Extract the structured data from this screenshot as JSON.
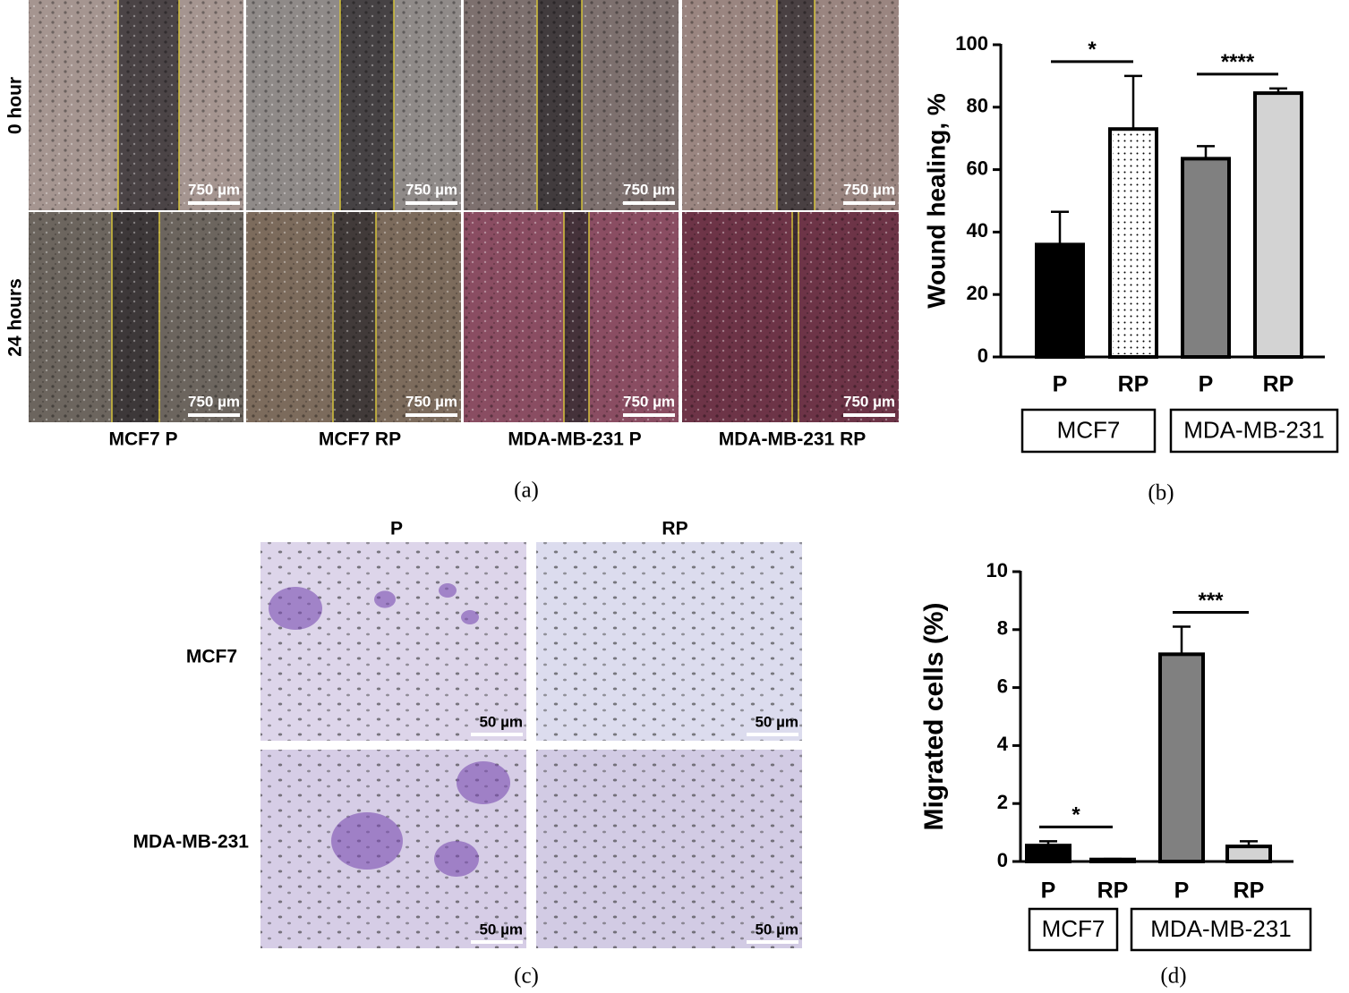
{
  "panel_a": {
    "caption": "(a)",
    "row_labels": [
      "0 hour",
      "24 hours"
    ],
    "column_labels": [
      "MCF7 P",
      "MCF7 RP",
      "MDA-MB-231  P",
      "MDA-MB-231 RP"
    ],
    "scale_bar": "750 µm"
  },
  "panel_c": {
    "caption": "(c)",
    "row_labels": [
      "MCF7",
      "MDA-MB-231"
    ],
    "column_labels": [
      "P",
      "RP"
    ],
    "scale_bar": "50 µm"
  },
  "chart_data": [
    {
      "type": "bar",
      "caption": "(b)",
      "ylabel": "Wound healing, %",
      "categories": [
        "P",
        "RP",
        "P",
        "RP"
      ],
      "groups": [
        "MCF7",
        "MDA-MB-231"
      ],
      "values": [
        36,
        73,
        63.5,
        84.5
      ],
      "errors": [
        10.5,
        17,
        4,
        1.5
      ],
      "colors": [
        "#000000",
        "#ffffff",
        "#808080",
        "#d3d3d3"
      ],
      "ylim": [
        0,
        100
      ],
      "yticks": [
        0,
        20,
        40,
        60,
        80,
        100
      ],
      "significance": [
        "*",
        "****"
      ]
    },
    {
      "type": "bar",
      "caption": "(d)",
      "ylabel": "Migrated cells (%)",
      "categories": [
        "P",
        "RP",
        "P",
        "RP"
      ],
      "groups": [
        "MCF7",
        "MDA-MB-231"
      ],
      "values": [
        0.55,
        0.07,
        7.15,
        0.52
      ],
      "errors": [
        0.15,
        0.02,
        0.95,
        0.18
      ],
      "colors": [
        "#000000",
        "#ffffff",
        "#808080",
        "#d3d3d3"
      ],
      "ylim": [
        0,
        10
      ],
      "yticks": [
        0,
        2,
        4,
        6,
        8,
        10
      ],
      "significance": [
        "*",
        "***"
      ]
    }
  ]
}
